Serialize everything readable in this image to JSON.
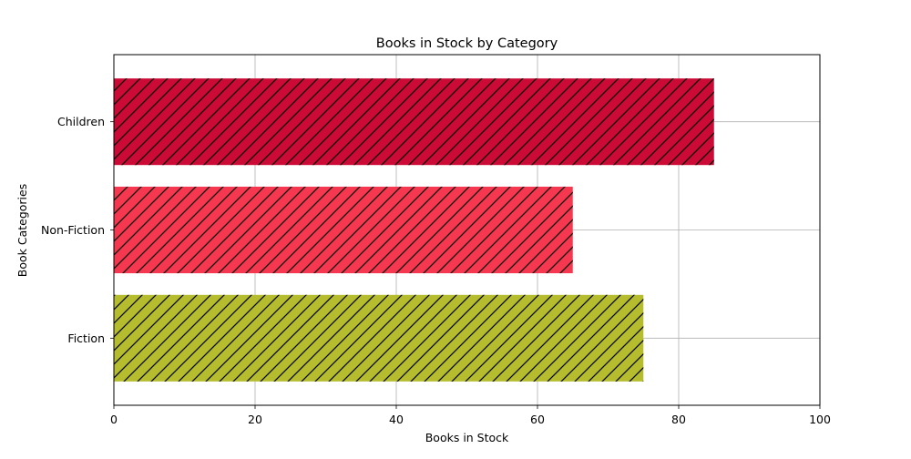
{
  "chart_data": {
    "type": "bar",
    "orientation": "horizontal",
    "title": "Books in Stock by Category",
    "xlabel": "Books in Stock",
    "ylabel": "Book Categories",
    "categories": [
      "Fiction",
      "Non-Fiction",
      "Children"
    ],
    "values": [
      75,
      65,
      85
    ],
    "colors": [
      "#b5bd2e",
      "#f5384f",
      "#cc0a36"
    ],
    "hatch": "diagonal",
    "xlim": [
      0,
      100
    ],
    "xticks": [
      0,
      20,
      40,
      60,
      80,
      100
    ],
    "xtick_labels": [
      "0",
      "20",
      "40",
      "60",
      "80",
      "100"
    ],
    "grid": true
  }
}
